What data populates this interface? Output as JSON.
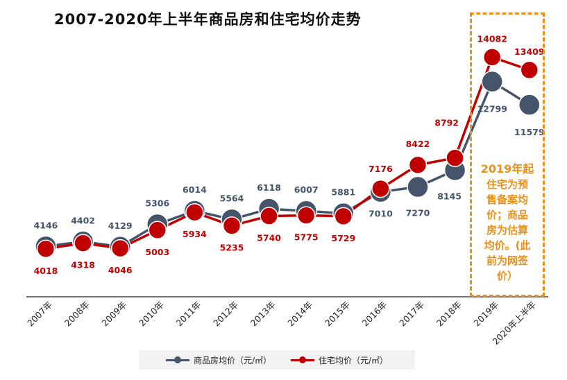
{
  "chart_data": {
    "type": "line",
    "title": "2007-2020年上半年商品房和住宅均价走势",
    "categories": [
      "2007年",
      "2008年",
      "2009年",
      "2010年",
      "2011年",
      "2012年",
      "2013年",
      "2014年",
      "2015年",
      "2016年",
      "2017年",
      "2018年",
      "2019年",
      "2020年上半年"
    ],
    "series": [
      {
        "name": "商品房均价（元/㎡）",
        "color": "#44546a",
        "values": [
          4146,
          4402,
          4129,
          5306,
          6014,
          5564,
          6118,
          6007,
          5881,
          7010,
          7270,
          8145,
          12799,
          11579
        ]
      },
      {
        "name": "住宅均价（元/㎡）",
        "color": "#c00000",
        "values": [
          4018,
          4318,
          4046,
          5003,
          5934,
          5235,
          5740,
          5775,
          5729,
          7176,
          8422,
          8792,
          14082,
          13409
        ]
      }
    ],
    "ylim": [
      1500,
      16500
    ],
    "grid": false,
    "legend_position": "bottom",
    "annotation": {
      "lines": [
        "2019年起",
        "住宅为预",
        "售备案均",
        "价；商品",
        "房为估算",
        "均价。(此",
        "前为网签",
        "价）"
      ],
      "color": "#e8901a"
    }
  }
}
